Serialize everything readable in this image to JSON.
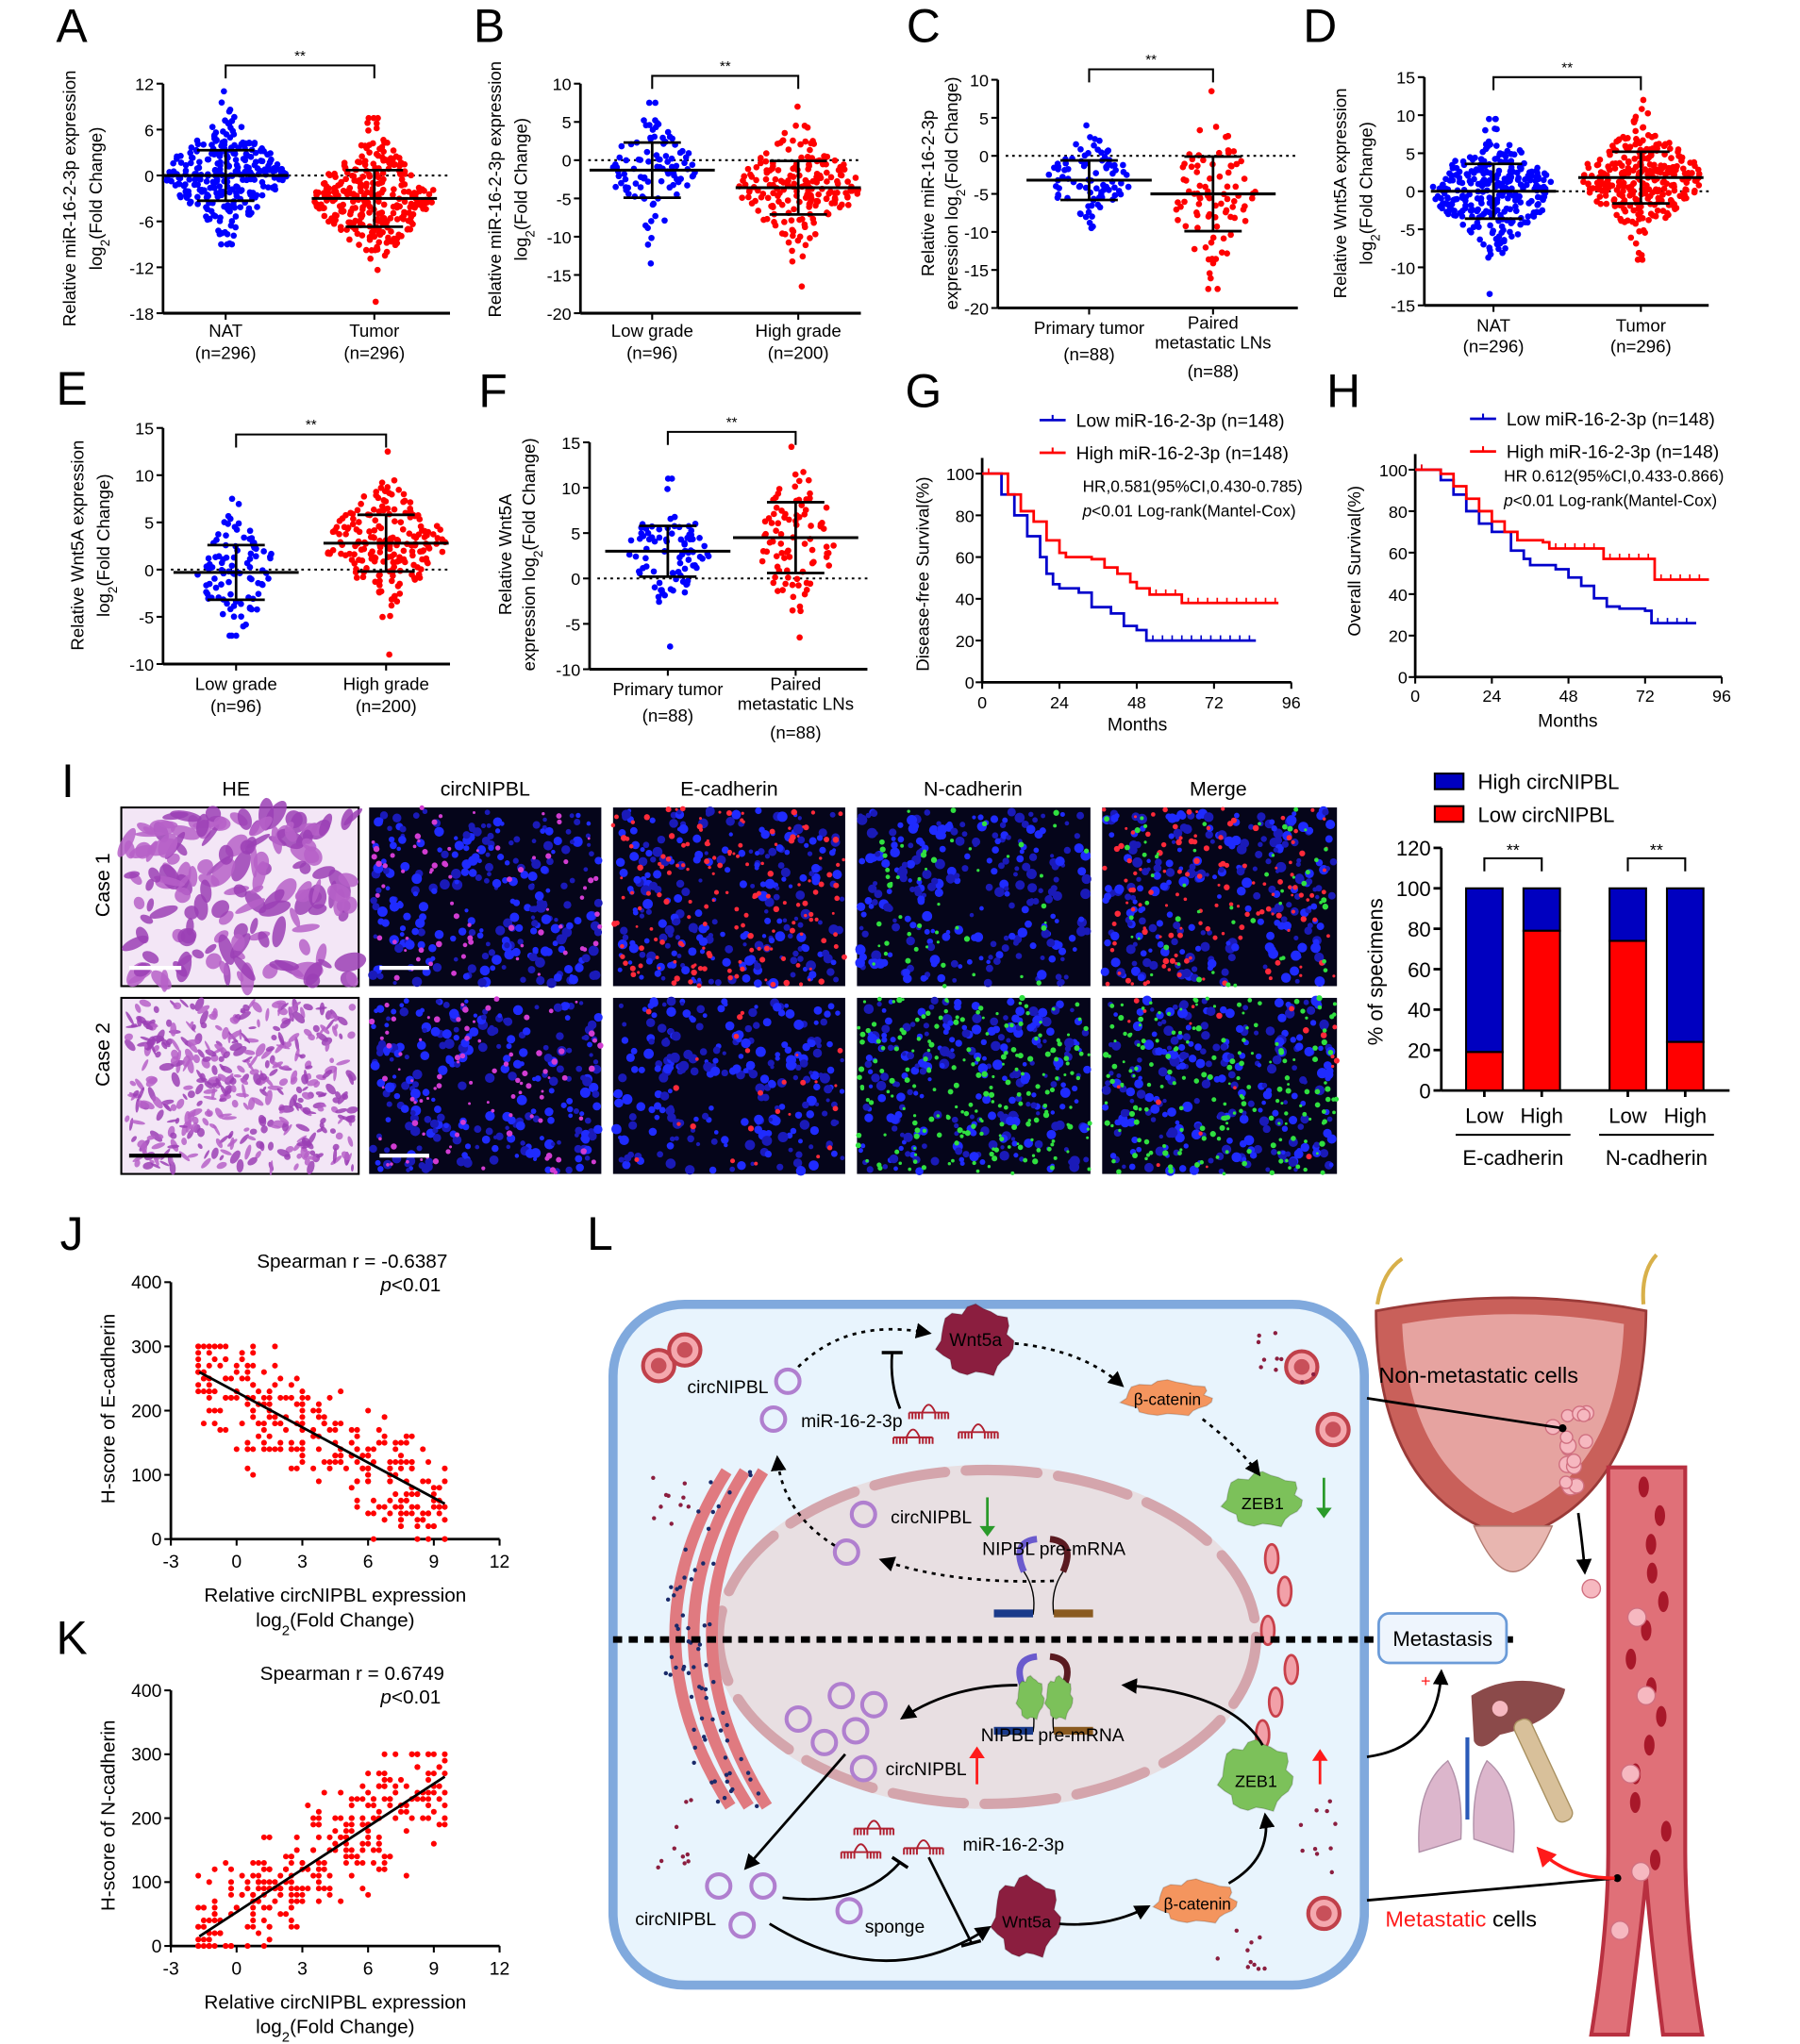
{
  "panel_labels": {
    "A": "A",
    "B": "B",
    "C": "C",
    "D": "D",
    "E": "E",
    "F": "F",
    "G": "G",
    "H": "H",
    "I": "I",
    "J": "J",
    "K": "K",
    "L": "L"
  },
  "chart_data": [
    {
      "panel": "A",
      "type": "scatter",
      "ylabel": {
        "line1": "Relative miR-16-2-3p expression",
        "line2": [
          "log",
          "2",
          "(Fold Change)"
        ]
      },
      "ylim": [
        -18,
        12
      ],
      "yticks": [
        12,
        6,
        0,
        -6,
        -12,
        -18
      ],
      "significance": "**",
      "groups": [
        {
          "label": [
            "NAT",
            "(n=296)"
          ],
          "n": 296,
          "mean": 0,
          "sd": 3.3,
          "min": -9,
          "max": 11,
          "color": "#0000ff"
        },
        {
          "label": [
            "Tumor",
            "(n=296)"
          ],
          "n": 296,
          "mean": -3,
          "sd": 3.7,
          "min": -16.5,
          "max": 7.5,
          "color": "#ff0000"
        }
      ]
    },
    {
      "panel": "B",
      "type": "scatter",
      "ylabel": {
        "line1": "Relative miR-16-2-3p expression",
        "line2": [
          "log",
          "2",
          "(Fold Change)"
        ]
      },
      "ylim": [
        -20,
        10
      ],
      "yticks": [
        10,
        5,
        0,
        -5,
        -10,
        -15,
        -20
      ],
      "significance": "**",
      "groups": [
        {
          "label": [
            "Low grade",
            "(n=96)"
          ],
          "n": 96,
          "mean": -1.3,
          "sd": 3.6,
          "min": -13.5,
          "max": 7.5,
          "color": "#0000ff"
        },
        {
          "label": [
            "High grade",
            "(n=200)"
          ],
          "n": 200,
          "mean": -3.6,
          "sd": 3.5,
          "min": -16.5,
          "max": 7,
          "color": "#ff0000"
        }
      ]
    },
    {
      "panel": "C",
      "type": "scatter",
      "ylabel": {
        "line1": "Relative  miR-16-2-3p",
        "line2": [
          "expression log",
          "2",
          "(Fold Change)"
        ]
      },
      "ylim": [
        -20,
        10
      ],
      "yticks": [
        10,
        5,
        0,
        -5,
        -10,
        -15,
        -20
      ],
      "significance": "**",
      "groups": [
        {
          "label": [
            "Primary tumor",
            "(n=88)"
          ],
          "n": 88,
          "mean": -3.2,
          "sd": 2.6,
          "min": -9.5,
          "max": 4,
          "color": "#0000ff"
        },
        {
          "label": [
            "Paired",
            "metastatic LNs",
            "(n=88)"
          ],
          "n": 88,
          "mean": -5,
          "sd": 4.9,
          "min": -17.5,
          "max": 8.5,
          "color": "#ff0000"
        }
      ]
    },
    {
      "panel": "D",
      "type": "scatter",
      "ylabel": {
        "line1": "Relative Wnt5A expression",
        "line2": [
          "log",
          "2",
          "(Fold Change)"
        ]
      },
      "ylim": [
        -15,
        15
      ],
      "yticks": [
        15,
        10,
        5,
        0,
        -5,
        -10,
        -15
      ],
      "significance": "**",
      "groups": [
        {
          "label": [
            "NAT",
            "(n=296)"
          ],
          "n": 296,
          "mean": 0,
          "sd": 3.6,
          "min": -13.5,
          "max": 9.5,
          "color": "#0000ff"
        },
        {
          "label": [
            "Tumor",
            "(n=296)"
          ],
          "n": 296,
          "mean": 1.8,
          "sd": 3.4,
          "min": -9,
          "max": 12,
          "color": "#ff0000"
        }
      ]
    },
    {
      "panel": "E",
      "type": "scatter",
      "ylabel": {
        "line1": "Relative Wnt5A expression",
        "line2": [
          "log",
          "2",
          "(Fold Change)"
        ]
      },
      "ylim": [
        -10,
        15
      ],
      "yticks": [
        15,
        10,
        5,
        0,
        -5,
        -10
      ],
      "significance": "**",
      "groups": [
        {
          "label": [
            "Low grade",
            "(n=96)"
          ],
          "n": 96,
          "mean": -0.3,
          "sd": 2.9,
          "min": -7,
          "max": 7.5,
          "color": "#0000ff"
        },
        {
          "label": [
            "High grade",
            "(n=200)"
          ],
          "n": 200,
          "mean": 2.8,
          "sd": 3.0,
          "min": -9,
          "max": 12.5,
          "color": "#ff0000"
        }
      ]
    },
    {
      "panel": "F",
      "type": "scatter",
      "ylabel": {
        "line1": "Relative  Wnt5A",
        "line2": [
          "expression log",
          "2",
          "(Fold Change)"
        ]
      },
      "ylim": [
        -10,
        15
      ],
      "yticks": [
        15,
        10,
        5,
        0,
        -5,
        -10
      ],
      "significance": "**",
      "groups": [
        {
          "label": [
            "Primary tumor",
            "(n=88)"
          ],
          "n": 88,
          "mean": 3,
          "sd": 2.8,
          "min": -7.5,
          "max": 11,
          "color": "#0000ff"
        },
        {
          "label": [
            "Paired",
            "metastatic LNs",
            "(n=88)"
          ],
          "n": 88,
          "mean": 4.5,
          "sd": 3.9,
          "min": -6.5,
          "max": 14.5,
          "color": "#ff0000"
        }
      ]
    },
    {
      "panel": "G",
      "type": "line",
      "ylabel": "Disease-free Survival(%)",
      "xlabel": "Months",
      "xlim": [
        0,
        96
      ],
      "ylim": [
        0,
        100
      ],
      "xticks": [
        0,
        24,
        48,
        72,
        96
      ],
      "yticks": [
        0,
        20,
        40,
        60,
        80,
        100
      ],
      "annotation": {
        "hr": "HR,0.581(95%CI,0.430-0.785)",
        "p": [
          "p",
          "<0.01 Log-rank(Mantel-Cox)"
        ]
      },
      "series": [
        {
          "name": "Low miR-16-2-3p (n=148)",
          "color": "#0000cc",
          "points": [
            [
              0,
              100
            ],
            [
              3,
              100
            ],
            [
              6,
              90
            ],
            [
              10,
              80
            ],
            [
              14,
              70
            ],
            [
              18,
              60
            ],
            [
              20,
              52
            ],
            [
              22,
              47
            ],
            [
              24,
              45
            ],
            [
              30,
              43
            ],
            [
              34,
              36
            ],
            [
              40,
              33
            ],
            [
              44,
              27
            ],
            [
              48,
              25
            ],
            [
              51,
              20
            ],
            [
              85,
              20
            ]
          ]
        },
        {
          "name": "High miR-16-2-3p (n=148)",
          "color": "#ff0000",
          "points": [
            [
              0,
              100
            ],
            [
              4,
              100
            ],
            [
              8,
              90
            ],
            [
              12,
              82
            ],
            [
              16,
              77
            ],
            [
              20,
              68
            ],
            [
              24,
              62
            ],
            [
              26,
              60
            ],
            [
              34,
              59
            ],
            [
              38,
              55
            ],
            [
              42,
              52
            ],
            [
              46,
              48
            ],
            [
              48,
              45
            ],
            [
              52,
              42
            ],
            [
              62,
              42
            ],
            [
              62,
              38
            ],
            [
              92,
              38
            ]
          ]
        }
      ]
    },
    {
      "panel": "H",
      "type": "line",
      "ylabel": "Overall Survival(%)",
      "xlabel": "Months",
      "xlim": [
        0,
        96
      ],
      "ylim": [
        0,
        100
      ],
      "xticks": [
        0,
        24,
        48,
        72,
        96
      ],
      "yticks": [
        0,
        20,
        40,
        60,
        80,
        100
      ],
      "annotation": {
        "hr": "HR 0.612(95%CI,0.433-0.866)",
        "p": [
          "p",
          "<0.01 Log-rank(Mantel-Cox)"
        ]
      },
      "series": [
        {
          "name": "Low miR-16-2-3p (n=148)",
          "color": "#0000cc",
          "points": [
            [
              0,
              100
            ],
            [
              5,
              100
            ],
            [
              8,
              95
            ],
            [
              12,
              88
            ],
            [
              16,
              80
            ],
            [
              20,
              74
            ],
            [
              24,
              70
            ],
            [
              30,
              61
            ],
            [
              34,
              57
            ],
            [
              36,
              54
            ],
            [
              44,
              52
            ],
            [
              48,
              48
            ],
            [
              52,
              44
            ],
            [
              56,
              38
            ],
            [
              60,
              34
            ],
            [
              64,
              33
            ],
            [
              72,
              32
            ],
            [
              74,
              26
            ],
            [
              88,
              26
            ]
          ]
        },
        {
          "name": "High miR-16-2-3p (n=148)",
          "color": "#ff0000",
          "points": [
            [
              0,
              100
            ],
            [
              4,
              100
            ],
            [
              8,
              98
            ],
            [
              12,
              92
            ],
            [
              16,
              86
            ],
            [
              20,
              80
            ],
            [
              24,
              75
            ],
            [
              28,
              70
            ],
            [
              32,
              66
            ],
            [
              40,
              65
            ],
            [
              42,
              62
            ],
            [
              59,
              62
            ],
            [
              59,
              57
            ],
            [
              75,
              57
            ],
            [
              75,
              47
            ],
            [
              92,
              47
            ]
          ]
        }
      ]
    },
    {
      "panel": "I",
      "type": "bar",
      "stacked": true,
      "ylabel": "% of specimens",
      "ylim": [
        0,
        120
      ],
      "yticks": [
        0,
        20,
        40,
        60,
        80,
        100,
        120
      ],
      "groups": [
        {
          "name": "E-cadherin",
          "categories": [
            "Low",
            "High"
          ]
        },
        {
          "name": "N-cadherin",
          "categories": [
            "Low",
            "High"
          ]
        }
      ],
      "series": [
        {
          "name": "High circNIPBL",
          "color": "#0000c0",
          "values": [
            81,
            21,
            26,
            76
          ]
        },
        {
          "name": "Low circNIPBL",
          "color": "#ff0000",
          "values": [
            19,
            79,
            74,
            24
          ]
        }
      ],
      "significance": [
        "**",
        "**"
      ]
    },
    {
      "panel": "J",
      "type": "scatter",
      "title": "Spearman  r = -0.6387",
      "pvalue": [
        "p",
        "<0.01"
      ],
      "xlabel": "Relative circNIPBL expression",
      "xlabel2": [
        "log",
        "2",
        "(Fold Change)"
      ],
      "ylabel": "H-score of E-cadherin",
      "xlim": [
        -3,
        12
      ],
      "ylim": [
        0,
        400
      ],
      "xticks": [
        -3,
        0,
        3,
        6,
        9,
        12
      ],
      "yticks": [
        0,
        100,
        200,
        300,
        400
      ],
      "n": 296,
      "color": "#ff0000",
      "fit": {
        "x": [
          -1.7,
          9.5
        ],
        "y": [
          260,
          55
        ]
      }
    },
    {
      "panel": "K",
      "type": "scatter",
      "title": "Spearman  r = 0.6749",
      "pvalue": [
        "p",
        "<0.01"
      ],
      "xlabel": "Relative circNIPBL expression",
      "xlabel2": [
        "log",
        "2",
        "(Fold Change)"
      ],
      "ylabel": "H-score of N-cadherin",
      "xlim": [
        -3,
        12
      ],
      "ylim": [
        0,
        400
      ],
      "xticks": [
        -3,
        0,
        3,
        6,
        9,
        12
      ],
      "yticks": [
        0,
        100,
        200,
        300,
        400
      ],
      "n": 296,
      "color": "#ff0000",
      "fit": {
        "x": [
          -1.7,
          9.5
        ],
        "y": [
          15,
          265
        ]
      }
    }
  ],
  "panel_I": {
    "columns": [
      "HE",
      "circNIPBL",
      "E-cadherin",
      "N-cadherin",
      "Merge"
    ],
    "rows": [
      "Case 1",
      "Case 2"
    ]
  },
  "diagram": {
    "circ_top": "circNIPBL",
    "mir_top": "miR-16-2-3p",
    "wnt_top": "Wnt5a",
    "bcat_top": "β-catenin",
    "zeb_top": "ZEB1",
    "circ_nuc_top": "circNIPBL",
    "premrna_top": "NIPBL pre-mRNA",
    "premrna_bottom": "NIPBL pre-mRNA",
    "circ_nuc_bottom": "circNIPBL",
    "zeb_bottom": "ZEB1",
    "mir_bottom": "miR-16-2-3p",
    "circ_bottom": "circNIPBL",
    "sponge": "sponge",
    "wnt_bottom": "Wnt5a",
    "bcat_bottom": "β-catenin",
    "metastasis": "Metastasis",
    "plus": "+",
    "non_metastatic": "Non-metastatic cells",
    "metastatic_word": "Metastatic",
    "cells_word": " cells",
    "colors": {
      "cell": "#e8f4fd",
      "membrane": "#80a9dd",
      "nucleus": "#e8dfe2",
      "wnt": "#8b1e3f",
      "bcat": "#f4955e",
      "zeb": "#7cc15a",
      "ring": "#b07fcf",
      "mirna": "#b02030"
    }
  }
}
